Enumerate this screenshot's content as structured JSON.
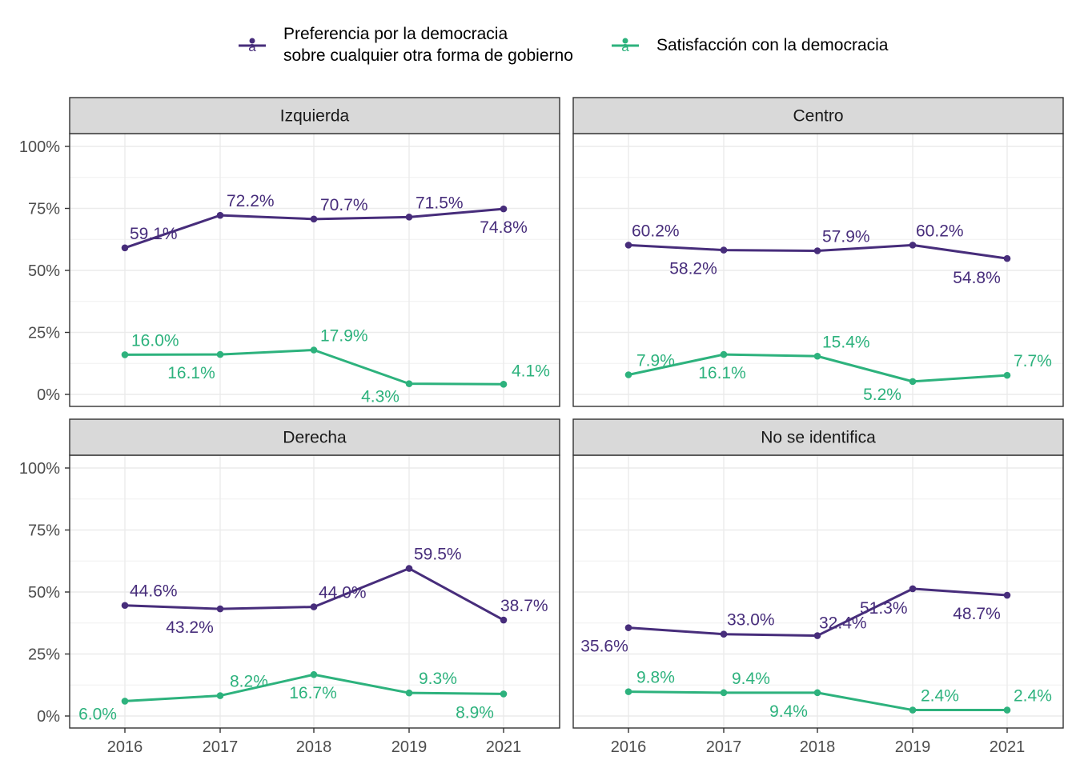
{
  "chart_data": {
    "type": "line",
    "x": [
      "2016",
      "2017",
      "2018",
      "2019",
      "2021"
    ],
    "ylim": [
      0,
      100
    ],
    "yticks": [
      "0%",
      "25%",
      "50%",
      "75%",
      "100%"
    ],
    "grid": true,
    "legend_position": "top",
    "colors": {
      "pref": "#472d7b",
      "sat": "#2db27d"
    },
    "legend": [
      {
        "key": "pref",
        "lines": [
          "Preferencia por la democracia",
          "sobre cualquier otra forma de gobierno"
        ],
        "glyph": "a"
      },
      {
        "key": "sat",
        "lines": [
          "Satisfacción con la democracia"
        ],
        "glyph": "a"
      }
    ],
    "panels": [
      {
        "title": "Izquierda",
        "series": [
          {
            "key": "pref",
            "values": [
              59.1,
              72.2,
              70.7,
              71.5,
              74.8
            ],
            "labels": [
              "59.1%",
              "72.2%",
              "70.7%",
              "71.5%",
              "74.8%"
            ]
          },
          {
            "key": "sat",
            "values": [
              16.0,
              16.1,
              17.9,
              4.3,
              4.1
            ],
            "labels": [
              "16.0%",
              "16.1%",
              "17.9%",
              "4.3%",
              "4.1%"
            ]
          }
        ]
      },
      {
        "title": "Centro",
        "series": [
          {
            "key": "pref",
            "values": [
              60.2,
              58.2,
              57.9,
              60.2,
              54.8
            ],
            "labels": [
              "60.2%",
              "58.2%",
              "57.9%",
              "60.2%",
              "54.8%"
            ]
          },
          {
            "key": "sat",
            "values": [
              7.9,
              16.1,
              15.4,
              5.2,
              7.7
            ],
            "labels": [
              "7.9%",
              "16.1%",
              "15.4%",
              "5.2%",
              "7.7%"
            ]
          }
        ]
      },
      {
        "title": "Derecha",
        "series": [
          {
            "key": "pref",
            "values": [
              44.6,
              43.2,
              44.0,
              59.5,
              38.7
            ],
            "labels": [
              "44.6%",
              "43.2%",
              "44.0%",
              "59.5%",
              "38.7%"
            ]
          },
          {
            "key": "sat",
            "values": [
              6.0,
              8.2,
              16.7,
              9.3,
              8.9
            ],
            "labels": [
              "6.0%",
              "8.2%",
              "16.7%",
              "9.3%",
              "8.9%"
            ]
          }
        ]
      },
      {
        "title": "No se identifica",
        "series": [
          {
            "key": "pref",
            "values": [
              35.6,
              33.0,
              32.4,
              51.3,
              48.7
            ],
            "labels": [
              "35.6%",
              "33.0%",
              "32.4%",
              "51.3%",
              "48.7%"
            ]
          },
          {
            "key": "sat",
            "values": [
              9.8,
              9.4,
              9.4,
              2.4,
              2.4
            ],
            "labels": [
              "9.8%",
              "9.4%",
              "9.4%",
              "2.4%",
              "2.4%"
            ]
          }
        ]
      }
    ]
  }
}
